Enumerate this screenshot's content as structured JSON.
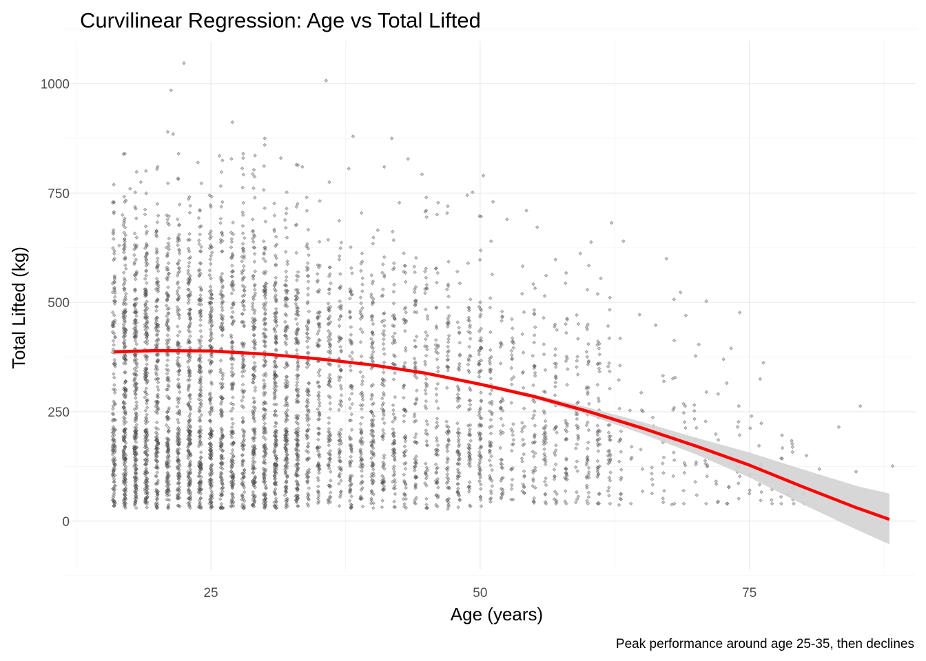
{
  "chart_data": {
    "type": "scatter",
    "title": "Curvilinear Regression: Age vs Total Lifted",
    "xlabel": "Age (years)",
    "ylabel": "Total Lifted (kg)",
    "caption": "Peak performance around age 25-35, then declines",
    "xlim": [
      11.5,
      90.5
    ],
    "ylim": [
      -112,
      1097
    ],
    "x_ticks": [
      25,
      50,
      75
    ],
    "x_tick_labels": [
      "25",
      "50",
      "75"
    ],
    "y_ticks": [
      0,
      250,
      500,
      750,
      1000
    ],
    "y_tick_labels": [
      "0",
      "250",
      "500",
      "750",
      "1000"
    ],
    "grid": true,
    "theme": "minimal",
    "point_count_approx": 5000,
    "points_sampled_note_free": true,
    "points": [
      [
        22.5,
        1047
      ],
      [
        21.3,
        985
      ],
      [
        35.7,
        1007
      ],
      [
        27.0,
        912
      ],
      [
        21.0,
        890
      ],
      [
        21.5,
        885
      ],
      [
        30.0,
        875
      ],
      [
        30.0,
        860
      ],
      [
        38.2,
        880
      ],
      [
        41.8,
        875
      ],
      [
        43.3,
        828
      ],
      [
        44.6,
        793
      ],
      [
        41.1,
        810
      ],
      [
        37.8,
        806
      ],
      [
        50.3,
        790
      ],
      [
        51.2,
        730
      ],
      [
        54.3,
        710
      ],
      [
        49.3,
        752
      ],
      [
        48.8,
        745
      ],
      [
        46.1,
        728
      ],
      [
        47.0,
        720
      ],
      [
        60.3,
        638
      ],
      [
        63.3,
        640
      ],
      [
        62.2,
        682
      ],
      [
        67.3,
        600
      ],
      [
        68.6,
        523
      ],
      [
        68.0,
        507
      ],
      [
        71.0,
        503
      ],
      [
        69.1,
        470
      ],
      [
        74.1,
        477
      ],
      [
        76.3,
        362
      ],
      [
        76.0,
        325
      ],
      [
        75.2,
        240
      ],
      [
        72.6,
        370
      ],
      [
        85.3,
        263
      ],
      [
        83.3,
        215
      ],
      [
        84.9,
        113
      ],
      [
        88.3,
        126
      ],
      [
        78.6,
        61
      ],
      [
        72.1,
        45
      ],
      [
        67.8,
        38
      ],
      [
        62.9,
        37
      ],
      [
        16.5,
        630
      ],
      [
        16.8,
        700
      ],
      [
        17.5,
        760
      ],
      [
        18.5,
        775
      ],
      [
        20.0,
        805
      ],
      [
        22.0,
        840
      ],
      [
        23.8,
        820
      ],
      [
        25.8,
        835
      ],
      [
        28.0,
        830
      ],
      [
        31.5,
        830
      ],
      [
        33.5,
        810
      ],
      [
        36.0,
        775
      ],
      [
        40.5,
        665
      ],
      [
        42.5,
        728
      ],
      [
        45.0,
        710
      ],
      [
        52.5,
        690
      ],
      [
        55.3,
        672
      ],
      [
        57.0,
        598
      ],
      [
        59.3,
        612
      ],
      [
        61.2,
        555
      ],
      [
        64.8,
        472
      ],
      [
        66.3,
        448
      ],
      [
        70.3,
        404
      ],
      [
        73.3,
        395
      ],
      [
        79.0,
        158
      ],
      [
        80.3,
        150
      ],
      [
        81.5,
        119
      ],
      [
        16.0,
        35
      ],
      [
        18.0,
        40
      ],
      [
        20.0,
        32
      ],
      [
        25.0,
        30
      ],
      [
        30.0,
        35
      ],
      [
        38.0,
        38
      ],
      [
        44.0,
        40
      ],
      [
        47.0,
        28
      ],
      [
        55.0,
        42
      ],
      [
        59.0,
        50
      ],
      [
        64.0,
        40
      ],
      [
        67.0,
        43
      ]
    ],
    "clusters": [
      {
        "x": [
          16,
          33
        ],
        "y": [
          30,
          840
        ],
        "weight": 2900
      },
      {
        "x": [
          33,
          50
        ],
        "y": [
          30,
          740
        ],
        "weight": 1300
      },
      {
        "x": [
          50,
          63
        ],
        "y": [
          40,
          640
        ],
        "weight": 500
      },
      {
        "x": [
          63,
          80
        ],
        "y": [
          40,
          520
        ],
        "weight": 120
      }
    ],
    "fit": {
      "name": "",
      "color": "#ff0000",
      "x": [
        16,
        20,
        25,
        30,
        35,
        40,
        45,
        50,
        55,
        60,
        65,
        70,
        75,
        80,
        85,
        88
      ],
      "y": [
        387,
        390,
        389,
        382,
        371,
        357,
        338,
        313,
        285,
        251,
        213,
        172,
        128,
        78,
        30,
        4
      ],
      "ci_upper": [
        392,
        393,
        391,
        385,
        374,
        359,
        341,
        317,
        290,
        260,
        227,
        191,
        157,
        118,
        80,
        63
      ],
      "ci_lower": [
        382,
        386,
        386,
        380,
        368,
        354,
        336,
        310,
        280,
        243,
        200,
        153,
        100,
        38,
        -20,
        -53
      ]
    },
    "colors": {
      "points_fill": "#7f7f7f",
      "points_stroke": "#000000",
      "fit_line": "#ff0000",
      "ribbon": "#d3d3d3",
      "grid_major": "#ebebeb",
      "grid_minor": "#f5f5f5"
    }
  }
}
